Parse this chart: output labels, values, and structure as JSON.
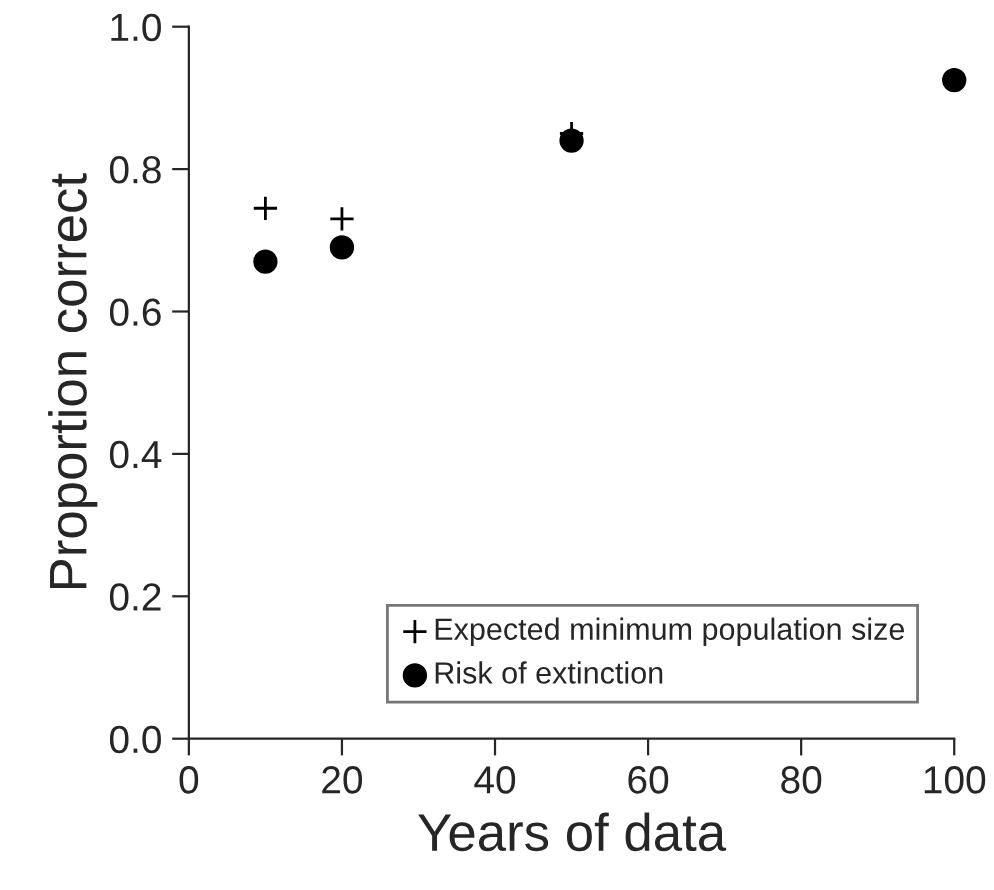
{
  "chart_data": {
    "type": "scatter",
    "xlabel": "Years of data",
    "ylabel": "Proportion correct",
    "x": [
      10,
      20,
      50,
      100
    ],
    "series": [
      {
        "name": "Expected minimum population size",
        "color": "#000000",
        "marker": "cross",
        "values": [
          0.745,
          0.73,
          0.85,
          0.925
        ]
      },
      {
        "name": "Risk of extinction",
        "color": "#000000",
        "marker": "circle",
        "values": [
          0.67,
          0.69,
          0.84,
          0.925
        ]
      }
    ],
    "xlim": [
      0,
      100
    ],
    "xticks": [
      0,
      20,
      40,
      60,
      80,
      100
    ],
    "ylim": [
      0,
      1
    ],
    "yticks": [
      {
        "value": 0,
        "label": "0.0"
      },
      {
        "value": 0.2,
        "label": "0.2"
      },
      {
        "value": 0.4,
        "label": "0.4"
      },
      {
        "value": 0.6,
        "label": "0.6"
      },
      {
        "value": 0.8,
        "label": "0.8"
      },
      {
        "value": 1,
        "label": "1.0"
      }
    ],
    "grid": false,
    "legend": "bottom right"
  }
}
